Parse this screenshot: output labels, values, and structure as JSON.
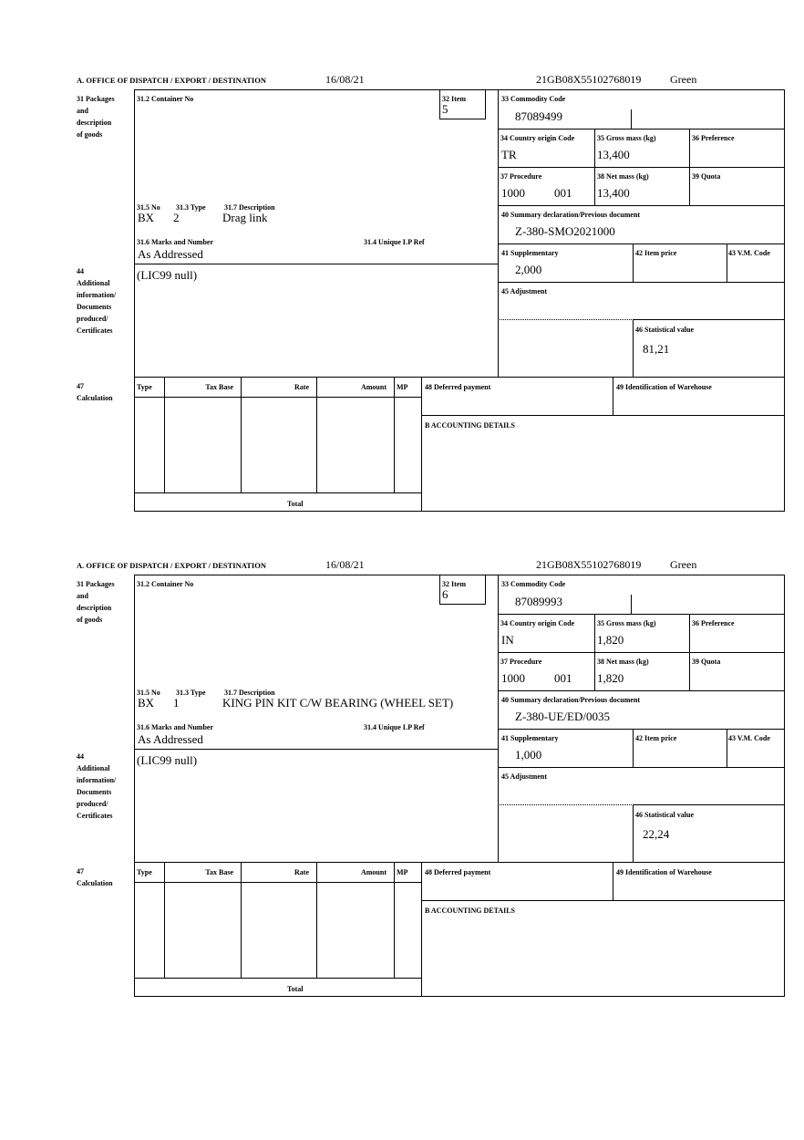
{
  "labels": {
    "office": "A.  OFFICE OF DISPATCH / EXPORT / DESTINATION",
    "packages": [
      "31 Packages",
      "and",
      "description",
      "of goods"
    ],
    "container": "31.2 Container No",
    "item": "32 Item",
    "no": "31.5 No",
    "type": "31.3 Type",
    "description": "31.7 Description",
    "marks": "31.6 Marks and Number",
    "unique": "31.4 Unique LP Ref",
    "commodity": "33 Commodity Code",
    "country": "34 Country origin Code",
    "gross": "35 Gross mass (kg)",
    "preference": "36 Preference",
    "procedure": "37 Procedure",
    "net": "38 Net mass (kg)",
    "quota": "39 Quota",
    "summary": "40 Summary declaration/Previous document",
    "supplementary": "41 Supplementary",
    "item_price": "42 Item price",
    "vm_code": "43 V.M. Code",
    "adjustment": "45 Adjustment",
    "statistical": "46 Statistical value",
    "additional": [
      "44",
      "Additional",
      "information/",
      "Documents",
      "produced/",
      "Certificates"
    ],
    "calculation": [
      "47",
      "Calculation"
    ],
    "calc_cols": [
      "Type",
      "Tax Base",
      "Rate",
      "Amount",
      "MP"
    ],
    "total": "Total",
    "deferred": "48 Deferred payment",
    "warehouse": "49 Identification of Warehouse",
    "accounting": "B ACCOUNTING DETAILS"
  },
  "forms": [
    {
      "date": "16/08/21",
      "reference": "21GB08X55102768019",
      "route": "Green",
      "item": "5",
      "pkg_no": "BX",
      "pkg_type": "2",
      "description": "Drag link",
      "marks": "As Addressed",
      "commodity": "87089499",
      "country": "TR",
      "gross": "13,400",
      "procedure": "1000",
      "procedure_add": "001",
      "net": "13,400",
      "summary": "Z-380-SMO2021000",
      "supplementary": "2,000",
      "statistical": "81,21",
      "additional": "(LIC99 null)"
    },
    {
      "date": "16/08/21",
      "reference": "21GB08X55102768019",
      "route": "Green",
      "item": "6",
      "pkg_no": "BX",
      "pkg_type": "1",
      "description": "KING PIN KIT C/W BEARING (WHEEL SET)",
      "marks": "As Addressed",
      "commodity": "87089993",
      "country": "IN",
      "gross": "1,820",
      "procedure": "1000",
      "procedure_add": "001",
      "net": "1,820",
      "summary": "Z-380-UE/ED/0035",
      "supplementary": "1,000",
      "statistical": "22,24",
      "additional": "(LIC99 null)"
    }
  ]
}
